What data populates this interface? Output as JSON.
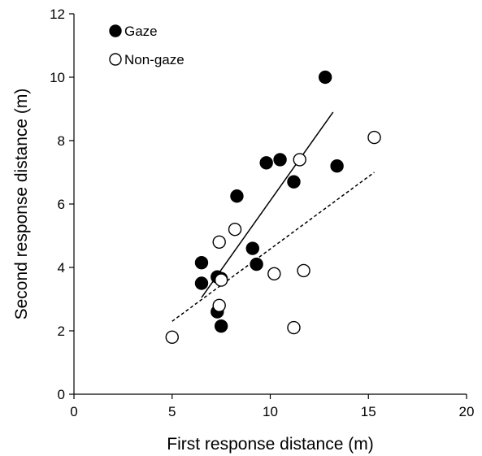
{
  "chart_data": {
    "type": "scatter",
    "title": "",
    "xlabel": "First response distance (m)",
    "ylabel": "Second response distance (m)",
    "xlim": [
      0,
      20
    ],
    "ylim": [
      0,
      12
    ],
    "xticks": [
      0,
      5,
      10,
      15,
      20
    ],
    "yticks": [
      0,
      2,
      4,
      6,
      8,
      10,
      12
    ],
    "grid": false,
    "legend_position": "top-left",
    "series": [
      {
        "name": "Gaze",
        "marker": "filled-circle",
        "color": "#000000",
        "points": [
          {
            "x": 6.5,
            "y": 4.15
          },
          {
            "x": 6.5,
            "y": 3.5
          },
          {
            "x": 7.3,
            "y": 3.7
          },
          {
            "x": 7.5,
            "y": 3.65
          },
          {
            "x": 7.3,
            "y": 2.6
          },
          {
            "x": 7.5,
            "y": 2.15
          },
          {
            "x": 8.3,
            "y": 6.25
          },
          {
            "x": 9.1,
            "y": 4.6
          },
          {
            "x": 9.3,
            "y": 4.1
          },
          {
            "x": 9.8,
            "y": 7.3
          },
          {
            "x": 10.5,
            "y": 7.4
          },
          {
            "x": 11.2,
            "y": 6.7
          },
          {
            "x": 12.8,
            "y": 10.0
          },
          {
            "x": 13.4,
            "y": 7.2
          }
        ],
        "trendline": {
          "style": "solid",
          "from": {
            "x": 6.5,
            "y": 3.05
          },
          "to": {
            "x": 13.2,
            "y": 8.9
          }
        }
      },
      {
        "name": "Non-gaze",
        "marker": "open-circle",
        "color": "#000000",
        "points": [
          {
            "x": 5.0,
            "y": 1.8
          },
          {
            "x": 7.4,
            "y": 4.8
          },
          {
            "x": 7.5,
            "y": 3.6
          },
          {
            "x": 7.4,
            "y": 2.8
          },
          {
            "x": 8.2,
            "y": 5.2
          },
          {
            "x": 10.2,
            "y": 3.8
          },
          {
            "x": 11.2,
            "y": 2.1
          },
          {
            "x": 11.5,
            "y": 7.4
          },
          {
            "x": 11.7,
            "y": 3.9
          },
          {
            "x": 15.3,
            "y": 8.1
          }
        ],
        "trendline": {
          "style": "dashed",
          "from": {
            "x": 5.0,
            "y": 2.3
          },
          "to": {
            "x": 15.3,
            "y": 7.0
          }
        }
      }
    ]
  }
}
